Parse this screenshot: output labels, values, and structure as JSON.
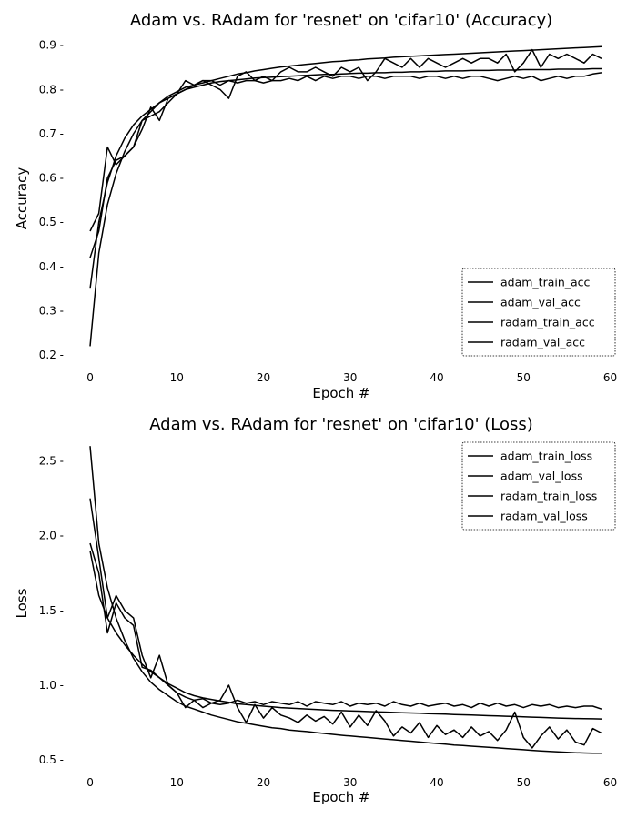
{
  "chart_data": [
    {
      "type": "line",
      "title": "Adam vs. RAdam for 'resnet' on 'cifar10' (Accuracy)",
      "xlabel": "Epoch #",
      "ylabel": "Accuracy",
      "xlim": [
        -2,
        61
      ],
      "ylim": [
        0.19,
        0.92
      ],
      "xticks": [
        0,
        10,
        20,
        30,
        40,
        50,
        60
      ],
      "yticks": [
        0.2,
        0.3,
        0.4,
        0.5,
        0.6,
        0.7,
        0.8,
        0.9
      ],
      "grid": false,
      "legend_position": "lower-right",
      "series": [
        {
          "name": "adam_train_acc",
          "values": [
            0.35,
            0.5,
            0.59,
            0.65,
            0.69,
            0.72,
            0.74,
            0.755,
            0.77,
            0.78,
            0.79,
            0.8,
            0.805,
            0.81,
            0.815,
            0.818,
            0.82,
            0.822,
            0.824,
            0.826,
            0.827,
            0.828,
            0.829,
            0.83,
            0.831,
            0.832,
            0.833,
            0.834,
            0.834,
            0.835,
            0.836,
            0.837,
            0.837,
            0.838,
            0.838,
            0.839,
            0.839,
            0.84,
            0.84,
            0.841,
            0.841,
            0.842,
            0.842,
            0.842,
            0.843,
            0.843,
            0.843,
            0.844,
            0.844,
            0.844,
            0.845,
            0.845,
            0.845,
            0.845,
            0.846,
            0.846,
            0.846,
            0.846,
            0.847,
            0.847
          ]
        },
        {
          "name": "adam_val_acc",
          "values": [
            0.48,
            0.52,
            0.67,
            0.63,
            0.65,
            0.67,
            0.73,
            0.74,
            0.75,
            0.77,
            0.79,
            0.8,
            0.81,
            0.82,
            0.82,
            0.81,
            0.82,
            0.815,
            0.82,
            0.82,
            0.815,
            0.82,
            0.82,
            0.825,
            0.82,
            0.83,
            0.82,
            0.83,
            0.825,
            0.83,
            0.83,
            0.825,
            0.83,
            0.83,
            0.825,
            0.83,
            0.83,
            0.83,
            0.825,
            0.83,
            0.83,
            0.825,
            0.83,
            0.825,
            0.83,
            0.83,
            0.825,
            0.82,
            0.825,
            0.83,
            0.825,
            0.83,
            0.82,
            0.825,
            0.83,
            0.825,
            0.83,
            0.83,
            0.835,
            0.838
          ]
        },
        {
          "name": "radam_train_acc",
          "values": [
            0.22,
            0.43,
            0.54,
            0.61,
            0.66,
            0.7,
            0.73,
            0.75,
            0.77,
            0.785,
            0.795,
            0.805,
            0.81,
            0.815,
            0.82,
            0.825,
            0.83,
            0.835,
            0.838,
            0.842,
            0.845,
            0.848,
            0.851,
            0.853,
            0.855,
            0.857,
            0.859,
            0.861,
            0.863,
            0.864,
            0.866,
            0.867,
            0.869,
            0.87,
            0.871,
            0.873,
            0.874,
            0.875,
            0.876,
            0.877,
            0.878,
            0.879,
            0.88,
            0.881,
            0.882,
            0.883,
            0.884,
            0.885,
            0.886,
            0.887,
            0.888,
            0.889,
            0.89,
            0.891,
            0.892,
            0.893,
            0.894,
            0.895,
            0.896,
            0.897
          ]
        },
        {
          "name": "radam_val_acc",
          "values": [
            0.42,
            0.48,
            0.6,
            0.64,
            0.65,
            0.67,
            0.71,
            0.76,
            0.73,
            0.78,
            0.79,
            0.82,
            0.81,
            0.82,
            0.81,
            0.8,
            0.78,
            0.83,
            0.84,
            0.82,
            0.83,
            0.82,
            0.84,
            0.85,
            0.84,
            0.84,
            0.85,
            0.84,
            0.83,
            0.85,
            0.84,
            0.85,
            0.82,
            0.84,
            0.87,
            0.86,
            0.85,
            0.87,
            0.85,
            0.87,
            0.86,
            0.85,
            0.86,
            0.87,
            0.86,
            0.87,
            0.87,
            0.86,
            0.88,
            0.84,
            0.86,
            0.89,
            0.85,
            0.88,
            0.87,
            0.88,
            0.87,
            0.86,
            0.88,
            0.87
          ]
        }
      ]
    },
    {
      "type": "line",
      "title": "Adam vs. RAdam for 'resnet' on 'cifar10' (Loss)",
      "xlabel": "Epoch #",
      "ylabel": "Loss",
      "xlim": [
        -2,
        61
      ],
      "ylim": [
        0.47,
        2.65
      ],
      "xticks": [
        0,
        10,
        20,
        30,
        40,
        50,
        60
      ],
      "yticks": [
        0.5,
        1.0,
        1.5,
        2.0,
        2.5
      ],
      "ytick_labels": [
        "0.5",
        "1.0",
        "1.5",
        "2.0",
        "2.5"
      ],
      "grid": false,
      "legend_position": "upper-right",
      "series": [
        {
          "name": "adam_train_loss",
          "values": [
            1.9,
            1.6,
            1.45,
            1.35,
            1.27,
            1.2,
            1.14,
            1.09,
            1.05,
            1.01,
            0.98,
            0.95,
            0.93,
            0.915,
            0.905,
            0.895,
            0.885,
            0.875,
            0.87,
            0.865,
            0.86,
            0.855,
            0.85,
            0.847,
            0.844,
            0.841,
            0.838,
            0.835,
            0.832,
            0.83,
            0.828,
            0.826,
            0.824,
            0.822,
            0.82,
            0.818,
            0.816,
            0.814,
            0.812,
            0.81,
            0.808,
            0.806,
            0.804,
            0.802,
            0.8,
            0.798,
            0.796,
            0.794,
            0.792,
            0.79,
            0.788,
            0.786,
            0.784,
            0.782,
            0.78,
            0.778,
            0.777,
            0.776,
            0.775,
            0.774
          ]
        },
        {
          "name": "adam_val_loss",
          "values": [
            1.95,
            1.75,
            1.35,
            1.55,
            1.45,
            1.4,
            1.12,
            1.1,
            1.05,
            1.0,
            0.95,
            0.92,
            0.9,
            0.91,
            0.88,
            0.87,
            0.88,
            0.9,
            0.88,
            0.89,
            0.87,
            0.89,
            0.88,
            0.87,
            0.89,
            0.86,
            0.89,
            0.88,
            0.87,
            0.89,
            0.86,
            0.88,
            0.87,
            0.88,
            0.86,
            0.89,
            0.87,
            0.86,
            0.88,
            0.86,
            0.87,
            0.88,
            0.86,
            0.87,
            0.85,
            0.88,
            0.86,
            0.88,
            0.86,
            0.87,
            0.85,
            0.87,
            0.86,
            0.87,
            0.85,
            0.86,
            0.85,
            0.86,
            0.86,
            0.84
          ]
        },
        {
          "name": "radam_train_loss",
          "values": [
            2.6,
            1.95,
            1.65,
            1.45,
            1.3,
            1.18,
            1.09,
            1.02,
            0.97,
            0.93,
            0.89,
            0.86,
            0.84,
            0.82,
            0.8,
            0.785,
            0.77,
            0.755,
            0.745,
            0.735,
            0.725,
            0.715,
            0.71,
            0.7,
            0.695,
            0.69,
            0.683,
            0.677,
            0.671,
            0.665,
            0.66,
            0.655,
            0.65,
            0.645,
            0.64,
            0.635,
            0.63,
            0.625,
            0.62,
            0.615,
            0.61,
            0.605,
            0.6,
            0.596,
            0.592,
            0.588,
            0.584,
            0.58,
            0.576,
            0.572,
            0.568,
            0.564,
            0.56,
            0.557,
            0.554,
            0.551,
            0.548,
            0.546,
            0.545,
            0.545
          ]
        },
        {
          "name": "radam_val_loss",
          "values": [
            2.25,
            1.85,
            1.45,
            1.6,
            1.5,
            1.45,
            1.2,
            1.05,
            1.2,
            1.0,
            0.95,
            0.85,
            0.9,
            0.85,
            0.88,
            0.9,
            1.0,
            0.85,
            0.75,
            0.87,
            0.78,
            0.85,
            0.8,
            0.78,
            0.75,
            0.8,
            0.76,
            0.79,
            0.74,
            0.82,
            0.72,
            0.8,
            0.73,
            0.83,
            0.76,
            0.66,
            0.72,
            0.68,
            0.75,
            0.65,
            0.73,
            0.67,
            0.7,
            0.65,
            0.72,
            0.66,
            0.69,
            0.63,
            0.7,
            0.82,
            0.65,
            0.58,
            0.66,
            0.72,
            0.64,
            0.7,
            0.62,
            0.6,
            0.71,
            0.68
          ]
        }
      ]
    }
  ]
}
